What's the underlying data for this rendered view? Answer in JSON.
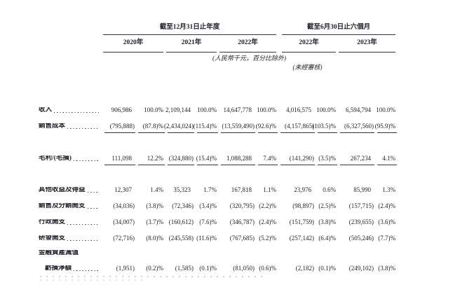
{
  "document": {
    "header": {
      "group_annual": {
        "title": "截至12月31日止年度",
        "years": [
          "2020年",
          "2021年",
          "2022年"
        ]
      },
      "group_interim": {
        "title": "截至6月30日止六個月",
        "years": [
          "2022年",
          "2023年"
        ]
      },
      "unit_note": "(人民幣千元，百分比除外)",
      "unaudited_note": "(未經審核)"
    },
    "rows": [
      {
        "label": "收入",
        "dots": true,
        "cells": [
          "906,986",
          "100.0%",
          "2,109,144",
          "100.0%",
          "14,647,778",
          "100.0%",
          "4,016,575",
          "100.0%",
          "6,594,794",
          "100.0%"
        ]
      },
      {
        "label": "銷售成本",
        "dots": true,
        "underline": true,
        "cells": [
          "(795,888)",
          "(87.8)%",
          "(2,434,024)",
          "(115.4)%",
          "(13,559,490)",
          "(92.6)%",
          "(4,157,865)",
          "(103.5)%",
          "(6,327,560)",
          "(95.9)%"
        ]
      },
      {
        "spacer": 23
      },
      {
        "label": "毛利/(毛損)",
        "dots": true,
        "underline": true,
        "cells": [
          "111,098",
          "12.2%",
          "(324,880)",
          "(15.4)%",
          "1,088,288",
          "7.4%",
          "(141,290)",
          "(3.5)%",
          "267,234",
          "4.1%"
        ]
      },
      {
        "spacer": 22
      },
      {
        "label": "其他收益及得益",
        "dots": true,
        "cells": [
          "12,307",
          "1.4%",
          "35,323",
          "1.7%",
          "167,818",
          "1.1%",
          "23,976",
          "0.6%",
          "85,990",
          "1.3%"
        ]
      },
      {
        "label": "銷售及分銷開支",
        "dots": true,
        "cells": [
          "(34,036)",
          "(3.8)%",
          "(72,346)",
          "(3.4)%",
          "(320,795)",
          "(2.2)%",
          "(98,897)",
          "(2.5)%",
          "(157,715)",
          "(2.4)%"
        ]
      },
      {
        "label": "行政開支",
        "dots": true,
        "cells": [
          "(34,007)",
          "(3.7)%",
          "(160,612)",
          "(7.6)%",
          "(346,787)",
          "(2.4)%",
          "(151,759)",
          "(3.8)%",
          "(239,655)",
          "(3.6)%"
        ]
      },
      {
        "label": "研發開支",
        "dots": true,
        "cells": [
          "(72,716)",
          "(8.0)%",
          "(245,558)",
          "(11.6)%",
          "(767,685)",
          "(5.2)%",
          "(257,142)",
          "(6.4)%",
          "(505,246)",
          "(7.7)%"
        ]
      },
      {
        "label": "金融資產減值",
        "dots": false,
        "height": 20,
        "cells": []
      },
      {
        "label": "虧損淨額",
        "dots": true,
        "indent": true,
        "cells": [
          "(1,951)",
          "(0.2)%",
          "(1,585)",
          "(0.1)%",
          "(81,050)",
          "(0.6)%",
          "(2,182)",
          "(0.1)%",
          "(249,102)",
          "(3.8)%"
        ]
      }
    ],
    "colors": {
      "text": "#1d1d27",
      "rule": "#33333c"
    }
  }
}
